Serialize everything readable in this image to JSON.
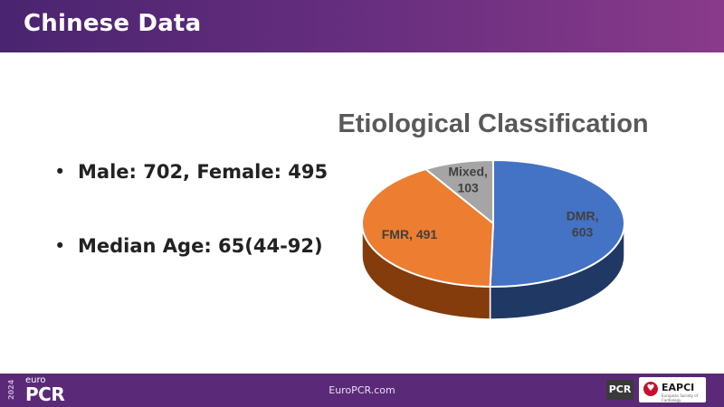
{
  "header": {
    "title": "Chinese Data"
  },
  "bullets": [
    {
      "text": "Male: 702, Female: 495"
    },
    {
      "text": "Median Age: 65(44-92)"
    }
  ],
  "chart_data": {
    "type": "pie",
    "title": "Etiological Classification",
    "labels": [
      "DMR",
      "FMR",
      "Mixed"
    ],
    "values": [
      603,
      491,
      103
    ],
    "colors": [
      "#4472c4",
      "#ed7d31",
      "#a5a5a5"
    ],
    "side_colors": [
      "#203864",
      "#843c0c",
      "#7f7f7f"
    ],
    "data_labels": [
      {
        "name": "DMR,",
        "value": "603"
      },
      {
        "name": "FMR, 491",
        "value": ""
      },
      {
        "name": "Mixed,",
        "value": "103"
      }
    ]
  },
  "footer": {
    "year": "2024",
    "brand_small": "euro",
    "brand_large": "PCR",
    "website": "EuroPCR.com",
    "pcr_badge": "PCR",
    "eapci_label": "EAPCI",
    "eapci_sub": "European Society of Cardiology"
  }
}
